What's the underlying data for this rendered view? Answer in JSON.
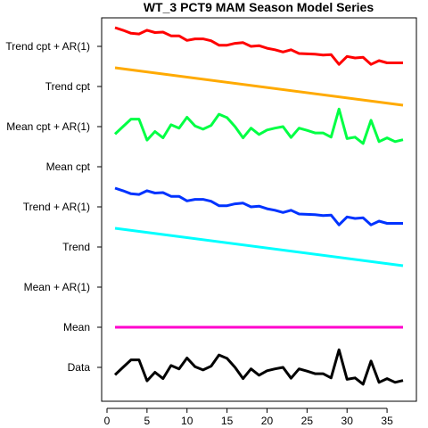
{
  "chart_data": {
    "type": "line",
    "title": "WT_3 PCT9 MAM Season Model Series",
    "xlabel": "",
    "ylabel": "",
    "xlim": [
      0,
      38
    ],
    "x_ticks": [
      0,
      5,
      10,
      15,
      20,
      25,
      30,
      35
    ],
    "row_labels": [
      "Data",
      "Mean",
      "Mean + AR(1)",
      "Trend",
      "Trend + AR(1)",
      "Mean cpt",
      "Mean cpt + AR(1)",
      "Trend cpt",
      "Trend cpt + AR(1)"
    ],
    "series": [
      {
        "name": "Data",
        "color": "#000000",
        "row": 0,
        "x": [
          1,
          2,
          3,
          4,
          5,
          6,
          7,
          8,
          9,
          10,
          11,
          12,
          13,
          14,
          15,
          16,
          17,
          18,
          19,
          20,
          21,
          22,
          23,
          24,
          25,
          26,
          27,
          28,
          29,
          30,
          31,
          32,
          33,
          34,
          35,
          36,
          37
        ],
        "y": [
          -0.2,
          0.0,
          0.2,
          0.2,
          -0.36,
          -0.13,
          -0.3,
          0.05,
          -0.04,
          0.25,
          0.02,
          -0.07,
          0.03,
          0.33,
          0.24,
          0.0,
          -0.3,
          -0.04,
          -0.21,
          -0.09,
          -0.04,
          0.0,
          -0.29,
          -0.04,
          -0.1,
          -0.17,
          -0.17,
          -0.28,
          0.47,
          -0.32,
          -0.28,
          -0.45,
          0.17,
          -0.4,
          -0.3,
          -0.4,
          -0.35
        ]
      },
      {
        "name": "Mean",
        "color": "#ff00cc",
        "row": 1,
        "x": [
          1,
          37
        ],
        "y": [
          0,
          0
        ]
      },
      {
        "name": "Trend",
        "color": "#00ffff",
        "row": 3,
        "x": [
          1,
          37
        ],
        "y": [
          0.5,
          -0.5
        ]
      },
      {
        "name": "Trend + AR(1)",
        "color": "#0033ff",
        "row": 4,
        "x": [
          1,
          2,
          3,
          4,
          5,
          6,
          7,
          8,
          9,
          10,
          11,
          12,
          13,
          14,
          15,
          16,
          17,
          18,
          19,
          20,
          21,
          22,
          23,
          24,
          25,
          26,
          27,
          28,
          29,
          30,
          31,
          32,
          33,
          34,
          35,
          36,
          37
        ],
        "y": [
          0.5,
          0.43,
          0.35,
          0.33,
          0.43,
          0.37,
          0.38,
          0.28,
          0.28,
          0.16,
          0.2,
          0.2,
          0.15,
          0.03,
          0.03,
          0.08,
          0.1,
          0.0,
          0.02,
          -0.05,
          -0.09,
          -0.15,
          -0.09,
          -0.19,
          -0.2,
          -0.21,
          -0.23,
          -0.22,
          -0.48,
          -0.27,
          -0.31,
          -0.29,
          -0.48,
          -0.38,
          -0.44,
          -0.44,
          -0.44
        ]
      },
      {
        "name": "Mean cpt + AR(1)",
        "color": "#00ff44",
        "row": 6,
        "x": [
          1,
          2,
          3,
          4,
          5,
          6,
          7,
          8,
          9,
          10,
          11,
          12,
          13,
          14,
          15,
          16,
          17,
          18,
          19,
          20,
          21,
          22,
          23,
          24,
          25,
          26,
          27,
          28,
          29,
          30,
          31,
          32,
          33,
          34,
          35,
          36,
          37
        ],
        "y": [
          -0.2,
          0.0,
          0.2,
          0.2,
          -0.36,
          -0.13,
          -0.3,
          0.05,
          -0.04,
          0.25,
          0.02,
          -0.07,
          0.03,
          0.33,
          0.24,
          0.0,
          -0.3,
          -0.04,
          -0.21,
          -0.09,
          -0.04,
          0.0,
          -0.29,
          -0.04,
          -0.1,
          -0.17,
          -0.17,
          -0.28,
          0.47,
          -0.32,
          -0.28,
          -0.45,
          0.17,
          -0.4,
          -0.3,
          -0.4,
          -0.35
        ]
      },
      {
        "name": "Trend cpt",
        "color": "#ffaa00",
        "row": 7,
        "x": [
          1,
          37
        ],
        "y": [
          0.5,
          -0.5
        ]
      },
      {
        "name": "Trend cpt + AR(1)",
        "color": "#ff0000",
        "row": 8,
        "x": [
          1,
          2,
          3,
          4,
          5,
          6,
          7,
          8,
          9,
          10,
          11,
          12,
          13,
          14,
          15,
          16,
          17,
          18,
          19,
          20,
          21,
          22,
          23,
          24,
          25,
          26,
          27,
          28,
          29,
          30,
          31,
          32,
          33,
          34,
          35,
          36,
          37
        ],
        "y": [
          0.5,
          0.43,
          0.35,
          0.33,
          0.43,
          0.37,
          0.38,
          0.28,
          0.28,
          0.16,
          0.2,
          0.2,
          0.15,
          0.03,
          0.03,
          0.08,
          0.1,
          0.0,
          0.02,
          -0.05,
          -0.09,
          -0.15,
          -0.09,
          -0.19,
          -0.2,
          -0.21,
          -0.23,
          -0.22,
          -0.48,
          -0.27,
          -0.31,
          -0.29,
          -0.48,
          -0.38,
          -0.44,
          -0.44,
          -0.44
        ]
      }
    ]
  }
}
